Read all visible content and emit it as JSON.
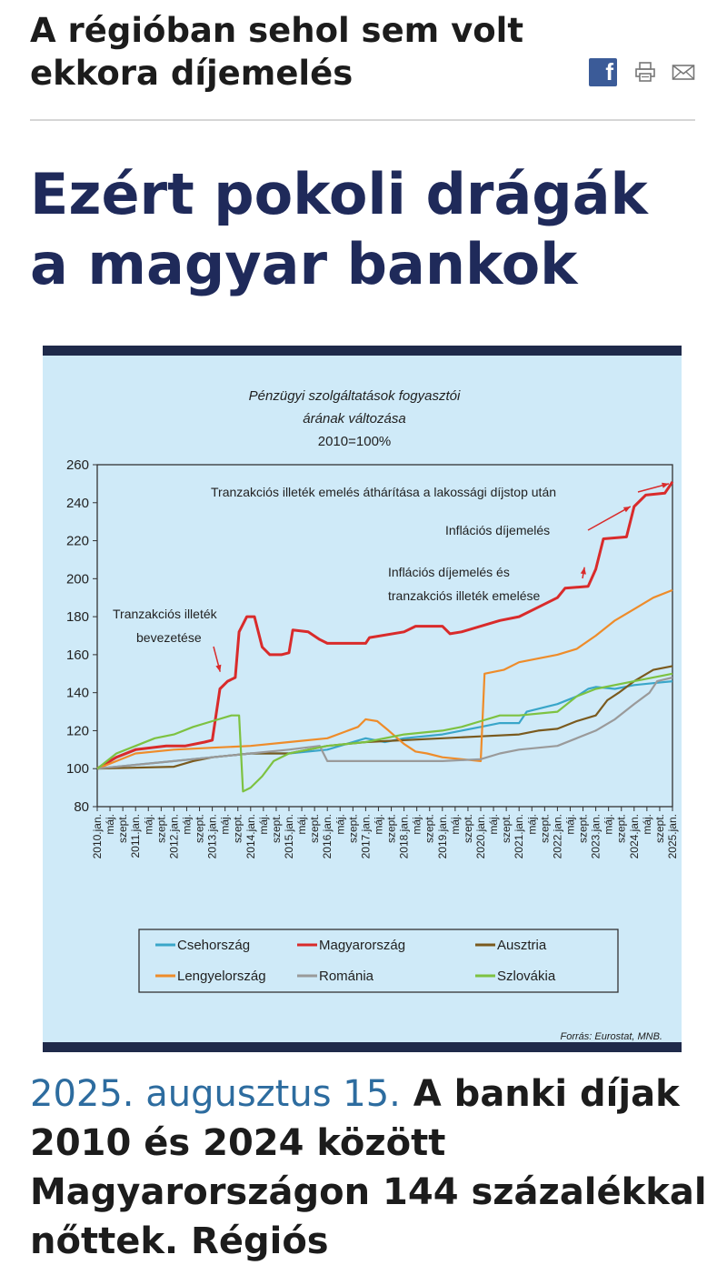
{
  "article": {
    "kicker": "A régióban sehol sem volt ekkora díjemelés",
    "headline": "Ezért pokoli drágák a magyar bankok",
    "lead_date": "2025. augusztus 15.",
    "lead_text": " A banki díjak 2010 és 2024 között Magyarországon 144 százalékkal nőttek. Régiós",
    "share": {
      "facebook_icon": "facebook-icon",
      "facebook_glyph": "f",
      "print_icon": "printer-icon",
      "mail_icon": "envelope-icon"
    }
  },
  "chart_data": {
    "type": "line",
    "title": "Pénzügyi szolgáltatások fogyasztói árának változása",
    "subtitle": "2010=100%",
    "source": "Forrás: Eurostat, MNB.",
    "ylim": [
      80,
      260
    ],
    "yticks": [
      260,
      240,
      220,
      200,
      180,
      160,
      140,
      120,
      100,
      80
    ],
    "xlim": [
      2010.0,
      2025.0
    ],
    "xticks": [
      {
        "x": 2010.0,
        "label": "2010.jan."
      },
      {
        "x": 2010.333,
        "label": "máj."
      },
      {
        "x": 2010.667,
        "label": "szept."
      },
      {
        "x": 2011.0,
        "label": "2011.jan."
      },
      {
        "x": 2011.333,
        "label": "máj."
      },
      {
        "x": 2011.667,
        "label": "szept."
      },
      {
        "x": 2012.0,
        "label": "2012.jan."
      },
      {
        "x": 2012.333,
        "label": "máj."
      },
      {
        "x": 2012.667,
        "label": "szept."
      },
      {
        "x": 2013.0,
        "label": "2013.jan."
      },
      {
        "x": 2013.333,
        "label": "máj."
      },
      {
        "x": 2013.667,
        "label": "szept."
      },
      {
        "x": 2014.0,
        "label": "2014.jan."
      },
      {
        "x": 2014.333,
        "label": "máj."
      },
      {
        "x": 2014.667,
        "label": "szept."
      },
      {
        "x": 2015.0,
        "label": "2015.jan."
      },
      {
        "x": 2015.333,
        "label": "máj."
      },
      {
        "x": 2015.667,
        "label": "szept."
      },
      {
        "x": 2016.0,
        "label": "2016.jan."
      },
      {
        "x": 2016.333,
        "label": "máj."
      },
      {
        "x": 2016.667,
        "label": "szept."
      },
      {
        "x": 2017.0,
        "label": "2017.jan."
      },
      {
        "x": 2017.333,
        "label": "máj."
      },
      {
        "x": 2017.667,
        "label": "szept."
      },
      {
        "x": 2018.0,
        "label": "2018.jan."
      },
      {
        "x": 2018.333,
        "label": "máj."
      },
      {
        "x": 2018.667,
        "label": "szept."
      },
      {
        "x": 2019.0,
        "label": "2019.jan."
      },
      {
        "x": 2019.333,
        "label": "máj."
      },
      {
        "x": 2019.667,
        "label": "szept."
      },
      {
        "x": 2020.0,
        "label": "2020.jan."
      },
      {
        "x": 2020.333,
        "label": "máj."
      },
      {
        "x": 2020.667,
        "label": "szept."
      },
      {
        "x": 2021.0,
        "label": "2021.jan."
      },
      {
        "x": 2021.333,
        "label": "máj."
      },
      {
        "x": 2021.667,
        "label": "szept."
      },
      {
        "x": 2022.0,
        "label": "2022.jan."
      },
      {
        "x": 2022.333,
        "label": "máj."
      },
      {
        "x": 2022.667,
        "label": "szept."
      },
      {
        "x": 2023.0,
        "label": "2023.jan."
      },
      {
        "x": 2023.333,
        "label": "máj."
      },
      {
        "x": 2023.667,
        "label": "szept."
      },
      {
        "x": 2024.0,
        "label": "2024.jan."
      },
      {
        "x": 2024.333,
        "label": "máj."
      },
      {
        "x": 2024.667,
        "label": "szept."
      },
      {
        "x": 2025.0,
        "label": "2025.jan."
      }
    ],
    "grid": false,
    "legend_placement": "bottom",
    "series": [
      {
        "name": "Csehország",
        "color": "#3aa6c9",
        "points": [
          [
            2010.0,
            100
          ],
          [
            2011.0,
            102
          ],
          [
            2012.0,
            104
          ],
          [
            2013.0,
            106
          ],
          [
            2014.0,
            108
          ],
          [
            2015.0,
            108
          ],
          [
            2016.0,
            110
          ],
          [
            2017.0,
            116
          ],
          [
            2017.5,
            114
          ],
          [
            2018.0,
            116
          ],
          [
            2019.0,
            118
          ],
          [
            2019.5,
            120
          ],
          [
            2020.0,
            122
          ],
          [
            2020.5,
            124
          ],
          [
            2021.0,
            124
          ],
          [
            2021.2,
            130
          ],
          [
            2022.0,
            134
          ],
          [
            2022.5,
            138
          ],
          [
            2022.8,
            142
          ],
          [
            2023.0,
            143
          ],
          [
            2023.5,
            142
          ],
          [
            2024.0,
            144
          ],
          [
            2024.5,
            145
          ],
          [
            2025.0,
            146
          ]
        ]
      },
      {
        "name": "Magyarország",
        "color": "#d92b2b",
        "points": [
          [
            2010.0,
            100
          ],
          [
            2010.5,
            106
          ],
          [
            2011.0,
            110
          ],
          [
            2011.8,
            112
          ],
          [
            2012.3,
            112
          ],
          [
            2012.8,
            114
          ],
          [
            2013.0,
            115
          ],
          [
            2013.2,
            142
          ],
          [
            2013.4,
            146
          ],
          [
            2013.6,
            148
          ],
          [
            2013.7,
            172
          ],
          [
            2013.9,
            180
          ],
          [
            2014.1,
            180
          ],
          [
            2014.3,
            164
          ],
          [
            2014.5,
            160
          ],
          [
            2014.8,
            160
          ],
          [
            2015.0,
            161
          ],
          [
            2015.1,
            173
          ],
          [
            2015.5,
            172
          ],
          [
            2015.8,
            168
          ],
          [
            2016.0,
            166
          ],
          [
            2017.0,
            166
          ],
          [
            2017.1,
            169
          ],
          [
            2018.0,
            172
          ],
          [
            2018.3,
            175
          ],
          [
            2019.0,
            175
          ],
          [
            2019.2,
            171
          ],
          [
            2019.5,
            172
          ],
          [
            2020.0,
            175
          ],
          [
            2020.5,
            178
          ],
          [
            2021.0,
            180
          ],
          [
            2021.5,
            185
          ],
          [
            2022.0,
            190
          ],
          [
            2022.2,
            195
          ],
          [
            2022.8,
            196
          ],
          [
            2023.0,
            205
          ],
          [
            2023.2,
            221
          ],
          [
            2023.8,
            222
          ],
          [
            2024.0,
            238
          ],
          [
            2024.3,
            244
          ],
          [
            2024.8,
            245
          ],
          [
            2025.0,
            251
          ]
        ]
      },
      {
        "name": "Ausztria",
        "color": "#7a5a1e",
        "points": [
          [
            2010.0,
            100
          ],
          [
            2012.0,
            101
          ],
          [
            2012.5,
            104
          ],
          [
            2013.0,
            106
          ],
          [
            2014.0,
            108
          ],
          [
            2015.0,
            108
          ],
          [
            2016.0,
            112
          ],
          [
            2017.0,
            114
          ],
          [
            2018.0,
            115
          ],
          [
            2019.0,
            116
          ],
          [
            2020.0,
            117
          ],
          [
            2021.0,
            118
          ],
          [
            2021.5,
            120
          ],
          [
            2022.0,
            121
          ],
          [
            2022.5,
            125
          ],
          [
            2023.0,
            128
          ],
          [
            2023.3,
            136
          ],
          [
            2023.6,
            140
          ],
          [
            2024.0,
            146
          ],
          [
            2024.5,
            152
          ],
          [
            2025.0,
            154
          ]
        ]
      },
      {
        "name": "Lengyelország",
        "color": "#ee8c2a",
        "points": [
          [
            2010.0,
            100
          ],
          [
            2011.0,
            108
          ],
          [
            2012.0,
            110
          ],
          [
            2013.0,
            111
          ],
          [
            2014.0,
            112
          ],
          [
            2015.0,
            114
          ],
          [
            2016.0,
            116
          ],
          [
            2016.8,
            122
          ],
          [
            2017.0,
            126
          ],
          [
            2017.3,
            125
          ],
          [
            2017.6,
            120
          ],
          [
            2018.0,
            113
          ],
          [
            2018.3,
            109
          ],
          [
            2018.6,
            108
          ],
          [
            2019.0,
            106
          ],
          [
            2019.5,
            105
          ],
          [
            2020.0,
            104
          ],
          [
            2020.1,
            150
          ],
          [
            2020.6,
            152
          ],
          [
            2021.0,
            156
          ],
          [
            2021.5,
            158
          ],
          [
            2022.0,
            160
          ],
          [
            2022.5,
            163
          ],
          [
            2023.0,
            170
          ],
          [
            2023.5,
            178
          ],
          [
            2024.0,
            184
          ],
          [
            2024.5,
            190
          ],
          [
            2025.0,
            194
          ]
        ]
      },
      {
        "name": "Románia",
        "color": "#9a9a9a",
        "points": [
          [
            2010.0,
            100
          ],
          [
            2011.0,
            102
          ],
          [
            2012.0,
            104
          ],
          [
            2013.0,
            106
          ],
          [
            2014.0,
            108
          ],
          [
            2015.0,
            110
          ],
          [
            2015.8,
            112
          ],
          [
            2016.0,
            104
          ],
          [
            2017.0,
            104
          ],
          [
            2018.0,
            104
          ],
          [
            2019.0,
            104
          ],
          [
            2020.0,
            105
          ],
          [
            2020.5,
            108
          ],
          [
            2021.0,
            110
          ],
          [
            2022.0,
            112
          ],
          [
            2022.5,
            116
          ],
          [
            2023.0,
            120
          ],
          [
            2023.5,
            126
          ],
          [
            2024.0,
            134
          ],
          [
            2024.4,
            140
          ],
          [
            2024.6,
            146
          ],
          [
            2025.0,
            148
          ]
        ]
      },
      {
        "name": "Szlovákia",
        "color": "#7dc241",
        "points": [
          [
            2010.0,
            100
          ],
          [
            2010.5,
            108
          ],
          [
            2011.0,
            112
          ],
          [
            2011.5,
            116
          ],
          [
            2012.0,
            118
          ],
          [
            2012.5,
            122
          ],
          [
            2013.0,
            125
          ],
          [
            2013.5,
            128
          ],
          [
            2013.7,
            128
          ],
          [
            2013.8,
            88
          ],
          [
            2014.0,
            90
          ],
          [
            2014.3,
            96
          ],
          [
            2014.6,
            104
          ],
          [
            2015.0,
            108
          ],
          [
            2015.5,
            110
          ],
          [
            2016.0,
            112
          ],
          [
            2017.0,
            114
          ],
          [
            2018.0,
            118
          ],
          [
            2019.0,
            120
          ],
          [
            2019.5,
            122
          ],
          [
            2020.0,
            125
          ],
          [
            2020.5,
            128
          ],
          [
            2021.0,
            128
          ],
          [
            2022.0,
            130
          ],
          [
            2022.5,
            138
          ],
          [
            2023.0,
            142
          ],
          [
            2024.0,
            146
          ],
          [
            2025.0,
            150
          ]
        ]
      }
    ],
    "annotations": [
      {
        "lines": [
          "Tranzakciós illeték emelés áthárítása a lakossági díjstop után"
        ],
        "arrow_to": [
          2025.0,
          250
        ]
      },
      {
        "lines": [
          "Inflációs díjemelés"
        ],
        "arrow_to": [
          2024.0,
          238
        ]
      },
      {
        "lines": [
          "Inflációs díjemelés és",
          "tranzakciós illeték emelése"
        ],
        "arrow_to": [
          2022.8,
          206
        ]
      },
      {
        "lines": [
          "Tranzakciós illeték",
          "bevezetése"
        ],
        "arrow_to": [
          2013.3,
          151
        ]
      }
    ]
  }
}
